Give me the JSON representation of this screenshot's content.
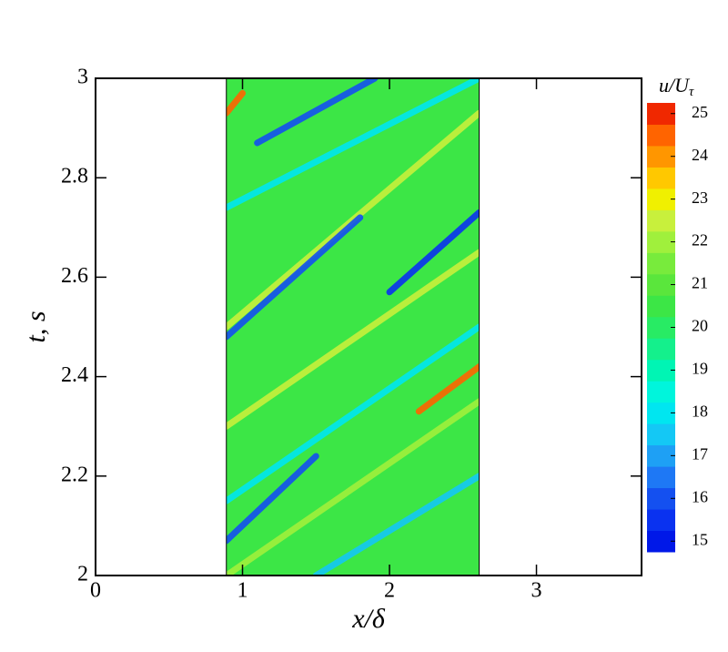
{
  "chart_data": {
    "type": "contour",
    "xlabel": "x/δ",
    "ylabel": "t, s",
    "xlim": [
      0,
      3.715
    ],
    "xticks": [
      0,
      1,
      2,
      3
    ],
    "ylim": [
      2,
      3
    ],
    "yticks": [
      2,
      {
        "value": 2.2,
        "label": "2.2"
      },
      {
        "value": 2.4,
        "label": "2.4"
      },
      {
        "value": 2.6,
        "label": "2.6"
      },
      {
        "value": 2.8,
        "label": "2.8"
      },
      3
    ],
    "field_x": [
      0.89,
      2.61
    ],
    "field_value": 20.5,
    "streaks": [
      {
        "x": [
          0.89,
          2.61
        ],
        "t": [
          2.0,
          2.35
        ],
        "value": 22
      },
      {
        "x": [
          1.5,
          2.61
        ],
        "t": [
          2.0,
          2.2
        ],
        "value": 17.5
      },
      {
        "x": [
          0.89,
          2.61
        ],
        "t": [
          2.15,
          2.5
        ],
        "value": 18
      },
      {
        "x": [
          0.89,
          2.61
        ],
        "t": [
          2.3,
          2.65
        ],
        "value": 22.5
      },
      {
        "x": [
          0.89,
          2.61
        ],
        "t": [
          2.5,
          2.93
        ],
        "value": 22.5
      },
      {
        "x": [
          0.89,
          2.61
        ],
        "t": [
          2.74,
          3.0
        ],
        "value": 18
      },
      {
        "x": [
          0.89,
          1.5
        ],
        "t": [
          2.07,
          2.24
        ],
        "value": 16
      },
      {
        "x": [
          0.89,
          1.8
        ],
        "t": [
          2.48,
          2.72
        ],
        "value": 16
      },
      {
        "x": [
          2.0,
          2.61
        ],
        "t": [
          2.57,
          2.73
        ],
        "value": 15.5
      },
      {
        "x": [
          1.1,
          1.9
        ],
        "t": [
          2.87,
          3.0
        ],
        "value": 16
      },
      {
        "x": [
          2.2,
          2.61
        ],
        "t": [
          2.33,
          2.42
        ],
        "value": 24.5
      },
      {
        "x": [
          0.89,
          1.0
        ],
        "t": [
          2.93,
          2.97
        ],
        "value": 24.5
      }
    ],
    "colorbar": {
      "title": "u/U",
      "title_sub": "τ",
      "lim": [
        14.75,
        25.25
      ],
      "step": 0.5,
      "ticks": [
        15,
        16,
        17,
        18,
        19,
        20,
        21,
        22,
        23,
        24,
        25
      ],
      "colors": [
        "#0018e8",
        "#0a32f0",
        "#1450f0",
        "#1e78f5",
        "#1ea0f5",
        "#14c8f5",
        "#00e6f0",
        "#00f5dc",
        "#00f5b4",
        "#14f08c",
        "#28eb64",
        "#3ce646",
        "#5ae63c",
        "#78eb3c",
        "#a0f03c",
        "#c8f03c",
        "#f0f000",
        "#ffc800",
        "#ff9600",
        "#ff6400",
        "#f02800"
      ]
    }
  }
}
